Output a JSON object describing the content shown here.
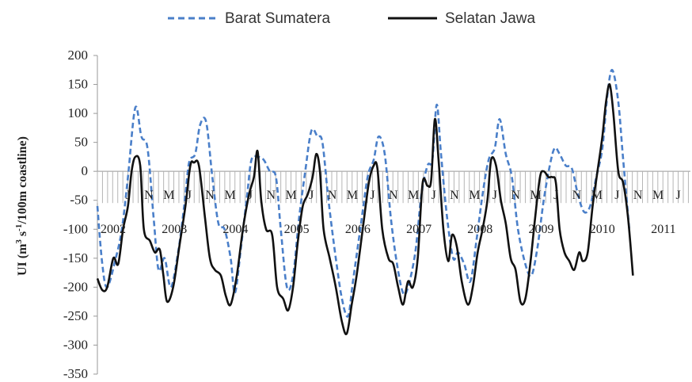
{
  "chart_data": {
    "type": "line",
    "ylabel_main": "UI (m",
    "ylabel_sup1": "3",
    "ylabel_mid": " s",
    "ylabel_sup2": "-1",
    "ylabel_end": "/100m coastline)",
    "ylim": [
      -350,
      200
    ],
    "yticks": [
      200,
      150,
      100,
      50,
      0,
      -50,
      -100,
      -150,
      -200,
      -250,
      -300,
      -350
    ],
    "legend_position": "top",
    "x_range": [
      2002.0,
      2011.7
    ],
    "year_labels": [
      {
        "x": 2002.0,
        "label": "2002"
      },
      {
        "x": 2003.0,
        "label": "2003"
      },
      {
        "x": 2004.0,
        "label": "2004"
      },
      {
        "x": 2005.0,
        "label": "2005"
      },
      {
        "x": 2006.0,
        "label": "2006"
      },
      {
        "x": 2007.0,
        "label": "2007"
      },
      {
        "x": 2008.0,
        "label": "2008"
      },
      {
        "x": 2009.0,
        "label": "2009"
      },
      {
        "x": 2010.0,
        "label": "2010"
      },
      {
        "x": 2011.0,
        "label": "2011"
      }
    ],
    "month_letters": [
      "J",
      "N",
      "M",
      "J",
      "N",
      "M",
      "J",
      "N",
      "M",
      "J",
      "N",
      "M",
      "J",
      "N",
      "M",
      "J",
      "N",
      "M",
      "J",
      "N",
      "M",
      "J",
      "N",
      "M",
      "J",
      "N",
      "M",
      "J",
      "N",
      "M"
    ],
    "series": [
      {
        "name": "Barat Sumatera",
        "color": "#4a7fc9",
        "style": "dashed",
        "points": [
          [
            2002.0,
            -60
          ],
          [
            2002.08,
            -160
          ],
          [
            2002.16,
            -200
          ],
          [
            2002.3,
            -150
          ],
          [
            2002.4,
            -100
          ],
          [
            2002.5,
            -10
          ],
          [
            2002.62,
            110
          ],
          [
            2002.72,
            60
          ],
          [
            2002.82,
            40
          ],
          [
            2002.92,
            -80
          ],
          [
            2003.0,
            -170
          ],
          [
            2003.1,
            -150
          ],
          [
            2003.2,
            -200
          ],
          [
            2003.32,
            -140
          ],
          [
            2003.42,
            -60
          ],
          [
            2003.5,
            15
          ],
          [
            2003.6,
            30
          ],
          [
            2003.68,
            80
          ],
          [
            2003.78,
            85
          ],
          [
            2003.88,
            -10
          ],
          [
            2003.98,
            -90
          ],
          [
            2004.08,
            -100
          ],
          [
            2004.18,
            -150
          ],
          [
            2004.25,
            -210
          ],
          [
            2004.35,
            -130
          ],
          [
            2004.45,
            -40
          ],
          [
            2004.52,
            20
          ],
          [
            2004.62,
            25
          ],
          [
            2004.72,
            20
          ],
          [
            2004.82,
            0
          ],
          [
            2004.92,
            -10
          ],
          [
            2005.0,
            -100
          ],
          [
            2005.1,
            -200
          ],
          [
            2005.2,
            -180
          ],
          [
            2005.3,
            -80
          ],
          [
            2005.4,
            0
          ],
          [
            2005.5,
            70
          ],
          [
            2005.6,
            60
          ],
          [
            2005.68,
            50
          ],
          [
            2005.78,
            -50
          ],
          [
            2005.9,
            -150
          ],
          [
            2006.0,
            -220
          ],
          [
            2006.1,
            -250
          ],
          [
            2006.18,
            -190
          ],
          [
            2006.3,
            -100
          ],
          [
            2006.42,
            -10
          ],
          [
            2006.52,
            20
          ],
          [
            2006.6,
            60
          ],
          [
            2006.7,
            30
          ],
          [
            2006.8,
            -80
          ],
          [
            2006.9,
            -160
          ],
          [
            2007.0,
            -210
          ],
          [
            2007.08,
            -200
          ],
          [
            2007.2,
            -140
          ],
          [
            2007.3,
            -40
          ],
          [
            2007.4,
            10
          ],
          [
            2007.48,
            20
          ],
          [
            2007.55,
            115
          ],
          [
            2007.62,
            30
          ],
          [
            2007.72,
            -80
          ],
          [
            2007.82,
            -150
          ],
          [
            2007.9,
            -140
          ],
          [
            2008.0,
            -160
          ],
          [
            2008.1,
            -190
          ],
          [
            2008.2,
            -120
          ],
          [
            2008.3,
            -40
          ],
          [
            2008.4,
            20
          ],
          [
            2008.5,
            40
          ],
          [
            2008.58,
            90
          ],
          [
            2008.68,
            30
          ],
          [
            2008.78,
            -10
          ],
          [
            2008.88,
            -100
          ],
          [
            2009.0,
            -160
          ],
          [
            2009.1,
            -180
          ],
          [
            2009.2,
            -130
          ],
          [
            2009.3,
            -50
          ],
          [
            2009.4,
            10
          ],
          [
            2009.48,
            40
          ],
          [
            2009.56,
            30
          ],
          [
            2009.66,
            10
          ],
          [
            2009.76,
            5
          ],
          [
            2009.86,
            -40
          ],
          [
            2009.96,
            -70
          ],
          [
            2010.06,
            -60
          ],
          [
            2010.16,
            -10
          ],
          [
            2010.26,
            40
          ],
          [
            2010.34,
            130
          ],
          [
            2010.42,
            175
          ],
          [
            2010.52,
            120
          ],
          [
            2010.6,
            20
          ],
          [
            2010.7,
            -100
          ]
        ]
      },
      {
        "name": "Selatan Jawa",
        "color": "#111111",
        "style": "solid",
        "points": [
          [
            2002.0,
            -185
          ],
          [
            2002.08,
            -205
          ],
          [
            2002.16,
            -200
          ],
          [
            2002.26,
            -150
          ],
          [
            2002.34,
            -160
          ],
          [
            2002.42,
            -100
          ],
          [
            2002.5,
            -60
          ],
          [
            2002.56,
            0
          ],
          [
            2002.62,
            25
          ],
          [
            2002.7,
            10
          ],
          [
            2002.76,
            -100
          ],
          [
            2002.86,
            -120
          ],
          [
            2002.94,
            -140
          ],
          [
            2003.02,
            -135
          ],
          [
            2003.08,
            -180
          ],
          [
            2003.14,
            -225
          ],
          [
            2003.24,
            -200
          ],
          [
            2003.34,
            -130
          ],
          [
            2003.44,
            -60
          ],
          [
            2003.52,
            10
          ],
          [
            2003.58,
            15
          ],
          [
            2003.66,
            10
          ],
          [
            2003.76,
            -80
          ],
          [
            2003.84,
            -150
          ],
          [
            2003.92,
            -170
          ],
          [
            2004.02,
            -180
          ],
          [
            2004.1,
            -215
          ],
          [
            2004.18,
            -230
          ],
          [
            2004.28,
            -180
          ],
          [
            2004.38,
            -100
          ],
          [
            2004.48,
            -40
          ],
          [
            2004.56,
            -10
          ],
          [
            2004.62,
            35
          ],
          [
            2004.68,
            -50
          ],
          [
            2004.76,
            -100
          ],
          [
            2004.86,
            -110
          ],
          [
            2004.94,
            -200
          ],
          [
            2005.04,
            -220
          ],
          [
            2005.12,
            -240
          ],
          [
            2005.2,
            -200
          ],
          [
            2005.28,
            -120
          ],
          [
            2005.36,
            -60
          ],
          [
            2005.44,
            -40
          ],
          [
            2005.52,
            -10
          ],
          [
            2005.58,
            30
          ],
          [
            2005.64,
            0
          ],
          [
            2005.7,
            -100
          ],
          [
            2005.8,
            -150
          ],
          [
            2005.9,
            -200
          ],
          [
            2006.0,
            -260
          ],
          [
            2006.08,
            -280
          ],
          [
            2006.16,
            -230
          ],
          [
            2006.24,
            -180
          ],
          [
            2006.34,
            -100
          ],
          [
            2006.44,
            -20
          ],
          [
            2006.52,
            10
          ],
          [
            2006.58,
            5
          ],
          [
            2006.66,
            -100
          ],
          [
            2006.76,
            -150
          ],
          [
            2006.84,
            -160
          ],
          [
            2006.92,
            -200
          ],
          [
            2007.0,
            -230
          ],
          [
            2007.08,
            -190
          ],
          [
            2007.16,
            -200
          ],
          [
            2007.24,
            -150
          ],
          [
            2007.32,
            -20
          ],
          [
            2007.4,
            -25
          ],
          [
            2007.46,
            -15
          ],
          [
            2007.52,
            90
          ],
          [
            2007.58,
            20
          ],
          [
            2007.66,
            -100
          ],
          [
            2007.74,
            -155
          ],
          [
            2007.8,
            -110
          ],
          [
            2007.88,
            -130
          ],
          [
            2007.96,
            -190
          ],
          [
            2008.06,
            -230
          ],
          [
            2008.14,
            -200
          ],
          [
            2008.22,
            -140
          ],
          [
            2008.3,
            -100
          ],
          [
            2008.38,
            -50
          ],
          [
            2008.44,
            20
          ],
          [
            2008.52,
            10
          ],
          [
            2008.6,
            -50
          ],
          [
            2008.68,
            -90
          ],
          [
            2008.76,
            -150
          ],
          [
            2008.84,
            -170
          ],
          [
            2008.92,
            -225
          ],
          [
            2009.0,
            -220
          ],
          [
            2009.08,
            -160
          ],
          [
            2009.16,
            -80
          ],
          [
            2009.24,
            -10
          ],
          [
            2009.3,
            0
          ],
          [
            2009.38,
            -10
          ],
          [
            2009.44,
            -10
          ],
          [
            2009.5,
            -20
          ],
          [
            2009.56,
            -100
          ],
          [
            2009.64,
            -140
          ],
          [
            2009.72,
            -155
          ],
          [
            2009.8,
            -170
          ],
          [
            2009.88,
            -140
          ],
          [
            2009.94,
            -155
          ],
          [
            2010.02,
            -140
          ],
          [
            2010.1,
            -60
          ],
          [
            2010.18,
            0
          ],
          [
            2010.26,
            60
          ],
          [
            2010.32,
            120
          ],
          [
            2010.38,
            150
          ],
          [
            2010.44,
            100
          ],
          [
            2010.52,
            0
          ],
          [
            2010.6,
            -20
          ],
          [
            2010.68,
            -80
          ],
          [
            2010.76,
            -180
          ]
        ]
      }
    ]
  }
}
